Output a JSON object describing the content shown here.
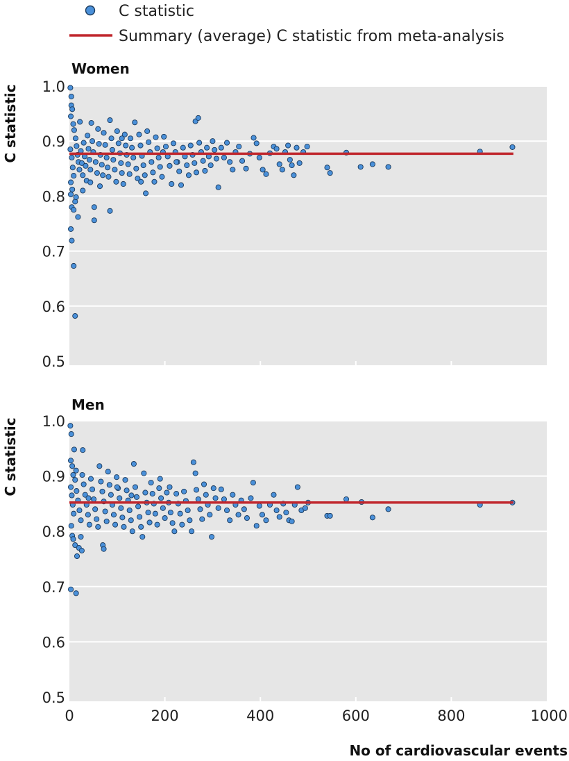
{
  "legend": {
    "point_label": "C statistic",
    "line_label": "Summary (average) C statistic from meta-analysis"
  },
  "colors": {
    "point_fill": "#4a90d9",
    "point_stroke": "#1b3a5c",
    "summary_line": "#c0272d",
    "panel_background": "#e6e6e6",
    "grid": "#ffffff"
  },
  "chart_data": [
    {
      "type": "scatter",
      "title": "Women",
      "xlabel": "No of cardiovascular events",
      "ylabel": "C statistic",
      "xlim": [
        0,
        1000
      ],
      "ylim": [
        0.5,
        1.0
      ],
      "x_ticks": [
        "0",
        "200",
        "400",
        "600",
        "800",
        "1000"
      ],
      "y_ticks": [
        "0.5",
        "0.6",
        "0.7",
        "0.8",
        "0.9",
        "1.0"
      ],
      "grid": "horizontal",
      "legend_position": "top",
      "summary_line": {
        "value": 0.877,
        "x_range": [
          0,
          930
        ]
      },
      "points": [
        [
          2,
          0.997
        ],
        [
          4,
          0.981
        ],
        [
          4,
          0.965
        ],
        [
          6,
          0.958
        ],
        [
          3,
          0.945
        ],
        [
          8,
          0.931
        ],
        [
          2,
          0.885
        ],
        [
          5,
          0.87
        ],
        [
          7,
          0.852
        ],
        [
          9,
          0.837
        ],
        [
          3,
          0.825
        ],
        [
          6,
          0.812
        ],
        [
          3,
          0.803
        ],
        [
          5,
          0.78
        ],
        [
          9,
          0.775
        ],
        [
          12,
          0.79
        ],
        [
          14,
          0.798
        ],
        [
          3,
          0.74
        ],
        [
          5,
          0.719
        ],
        [
          9,
          0.673
        ],
        [
          12,
          0.582
        ],
        [
          18,
          0.762
        ],
        [
          52,
          0.756
        ],
        [
          52,
          0.78
        ],
        [
          85,
          0.773
        ],
        [
          10,
          0.92
        ],
        [
          13,
          0.905
        ],
        [
          15,
          0.891
        ],
        [
          17,
          0.875
        ],
        [
          19,
          0.862
        ],
        [
          21,
          0.848
        ],
        [
          24,
          0.882
        ],
        [
          26,
          0.86
        ],
        [
          28,
          0.838
        ],
        [
          30,
          0.897
        ],
        [
          32,
          0.872
        ],
        [
          34,
          0.855
        ],
        [
          36,
          0.828
        ],
        [
          38,
          0.91
        ],
        [
          40,
          0.886
        ],
        [
          42,
          0.866
        ],
        [
          44,
          0.848
        ],
        [
          46,
          0.933
        ],
        [
          48,
          0.9
        ],
        [
          50,
          0.88
        ],
        [
          55,
          0.862
        ],
        [
          58,
          0.842
        ],
        [
          60,
          0.922
        ],
        [
          62,
          0.895
        ],
        [
          65,
          0.875
        ],
        [
          68,
          0.857
        ],
        [
          70,
          0.838
        ],
        [
          72,
          0.915
        ],
        [
          75,
          0.893
        ],
        [
          78,
          0.87
        ],
        [
          80,
          0.852
        ],
        [
          82,
          0.835
        ],
        [
          85,
          0.938
        ],
        [
          88,
          0.905
        ],
        [
          90,
          0.884
        ],
        [
          92,
          0.866
        ],
        [
          95,
          0.848
        ],
        [
          98,
          0.826
        ],
        [
          100,
          0.918
        ],
        [
          103,
          0.896
        ],
        [
          106,
          0.878
        ],
        [
          108,
          0.86
        ],
        [
          110,
          0.842
        ],
        [
          113,
          0.822
        ],
        [
          116,
          0.912
        ],
        [
          118,
          0.892
        ],
        [
          120,
          0.875
        ],
        [
          123,
          0.858
        ],
        [
          126,
          0.84
        ],
        [
          128,
          0.905
        ],
        [
          131,
          0.888
        ],
        [
          134,
          0.87
        ],
        [
          137,
          0.934
        ],
        [
          140,
          0.85
        ],
        [
          143,
          0.832
        ],
        [
          146,
          0.912
        ],
        [
          149,
          0.892
        ],
        [
          152,
          0.873
        ],
        [
          155,
          0.856
        ],
        [
          158,
          0.838
        ],
        [
          160,
          0.805
        ],
        [
          163,
          0.918
        ],
        [
          166,
          0.898
        ],
        [
          169,
          0.88
        ],
        [
          172,
          0.862
        ],
        [
          175,
          0.843
        ],
        [
          178,
          0.826
        ],
        [
          181,
          0.907
        ],
        [
          184,
          0.887
        ],
        [
          187,
          0.87
        ],
        [
          190,
          0.853
        ],
        [
          194,
          0.835
        ],
        [
          198,
          0.908
        ],
        [
          202,
          0.89
        ],
        [
          206,
          0.872
        ],
        [
          210,
          0.855
        ],
        [
          214,
          0.822
        ],
        [
          218,
          0.896
        ],
        [
          222,
          0.88
        ],
        [
          226,
          0.862
        ],
        [
          230,
          0.845
        ],
        [
          234,
          0.82
        ],
        [
          238,
          0.888
        ],
        [
          242,
          0.872
        ],
        [
          246,
          0.856
        ],
        [
          250,
          0.838
        ],
        [
          254,
          0.892
        ],
        [
          258,
          0.875
        ],
        [
          262,
          0.86
        ],
        [
          264,
          0.936
        ],
        [
          266,
          0.843
        ],
        [
          270,
          0.942
        ],
        [
          272,
          0.897
        ],
        [
          276,
          0.88
        ],
        [
          280,
          0.864
        ],
        [
          284,
          0.846
        ],
        [
          288,
          0.888
        ],
        [
          292,
          0.872
        ],
        [
          296,
          0.856
        ],
        [
          300,
          0.9
        ],
        [
          304,
          0.884
        ],
        [
          308,
          0.868
        ],
        [
          312,
          0.816
        ],
        [
          318,
          0.888
        ],
        [
          324,
          0.87
        ],
        [
          330,
          0.897
        ],
        [
          336,
          0.862
        ],
        [
          342,
          0.848
        ],
        [
          348,
          0.88
        ],
        [
          355,
          0.89
        ],
        [
          362,
          0.864
        ],
        [
          370,
          0.85
        ],
        [
          378,
          0.877
        ],
        [
          386,
          0.906
        ],
        [
          392,
          0.896
        ],
        [
          398,
          0.87
        ],
        [
          405,
          0.848
        ],
        [
          412,
          0.84
        ],
        [
          420,
          0.878
        ],
        [
          428,
          0.89
        ],
        [
          434,
          0.886
        ],
        [
          440,
          0.858
        ],
        [
          446,
          0.848
        ],
        [
          452,
          0.88
        ],
        [
          458,
          0.892
        ],
        [
          462,
          0.866
        ],
        [
          466,
          0.856
        ],
        [
          470,
          0.838
        ],
        [
          476,
          0.888
        ],
        [
          482,
          0.86
        ],
        [
          490,
          0.88
        ],
        [
          498,
          0.89
        ],
        [
          540,
          0.852
        ],
        [
          546,
          0.842
        ],
        [
          580,
          0.879
        ],
        [
          610,
          0.853
        ],
        [
          635,
          0.858
        ],
        [
          668,
          0.853
        ],
        [
          860,
          0.881
        ],
        [
          928,
          0.889
        ],
        [
          22,
          0.935
        ],
        [
          28,
          0.81
        ],
        [
          44,
          0.825
        ],
        [
          64,
          0.818
        ],
        [
          110,
          0.905
        ],
        [
          150,
          0.826
        ],
        [
          196,
          0.88
        ],
        [
          224,
          0.862
        ]
      ]
    },
    {
      "type": "scatter",
      "title": "Men",
      "xlabel": "No of cardiovascular events",
      "ylabel": "C statistic",
      "xlim": [
        0,
        1000
      ],
      "ylim": [
        0.5,
        1.0
      ],
      "x_ticks": [
        "0",
        "200",
        "400",
        "600",
        "800",
        "1000"
      ],
      "y_ticks": [
        "0.5",
        "0.6",
        "0.7",
        "0.8",
        "0.9",
        "1.0"
      ],
      "grid": "horizontal",
      "legend_position": "top",
      "summary_line": {
        "value": 0.852,
        "x_range": [
          0,
          930
        ]
      },
      "points": [
        [
          2,
          0.991
        ],
        [
          4,
          0.976
        ],
        [
          3,
          0.928
        ],
        [
          6,
          0.918
        ],
        [
          8,
          0.902
        ],
        [
          10,
          0.948
        ],
        [
          3,
          0.88
        ],
        [
          5,
          0.865
        ],
        [
          7,
          0.848
        ],
        [
          9,
          0.832
        ],
        [
          4,
          0.81
        ],
        [
          6,
          0.792
        ],
        [
          8,
          0.786
        ],
        [
          12,
          0.775
        ],
        [
          3,
          0.695
        ],
        [
          14,
          0.688
        ],
        [
          16,
          0.755
        ],
        [
          20,
          0.77
        ],
        [
          26,
          0.765
        ],
        [
          28,
          0.947
        ],
        [
          12,
          0.893
        ],
        [
          15,
          0.873
        ],
        [
          18,
          0.856
        ],
        [
          21,
          0.838
        ],
        [
          24,
          0.82
        ],
        [
          27,
          0.902
        ],
        [
          30,
          0.885
        ],
        [
          33,
          0.866
        ],
        [
          36,
          0.848
        ],
        [
          39,
          0.83
        ],
        [
          42,
          0.812
        ],
        [
          45,
          0.895
        ],
        [
          48,
          0.876
        ],
        [
          51,
          0.858
        ],
        [
          54,
          0.84
        ],
        [
          57,
          0.822
        ],
        [
          60,
          0.808
        ],
        [
          63,
          0.918
        ],
        [
          66,
          0.89
        ],
        [
          69,
          0.872
        ],
        [
          72,
          0.854
        ],
        [
          75,
          0.836
        ],
        [
          78,
          0.818
        ],
        [
          81,
          0.908
        ],
        [
          84,
          0.884
        ],
        [
          87,
          0.866
        ],
        [
          90,
          0.848
        ],
        [
          93,
          0.83
        ],
        [
          96,
          0.812
        ],
        [
          99,
          0.898
        ],
        [
          102,
          0.878
        ],
        [
          105,
          0.86
        ],
        [
          108,
          0.842
        ],
        [
          111,
          0.825
        ],
        [
          114,
          0.808
        ],
        [
          117,
          0.893
        ],
        [
          120,
          0.874
        ],
        [
          123,
          0.856
        ],
        [
          126,
          0.838
        ],
        [
          129,
          0.82
        ],
        [
          132,
          0.8
        ],
        [
          135,
          0.922
        ],
        [
          138,
          0.88
        ],
        [
          141,
          0.862
        ],
        [
          144,
          0.845
        ],
        [
          147,
          0.826
        ],
        [
          150,
          0.808
        ],
        [
          153,
          0.79
        ],
        [
          156,
          0.905
        ],
        [
          159,
          0.87
        ],
        [
          162,
          0.852
        ],
        [
          165,
          0.834
        ],
        [
          168,
          0.816
        ],
        [
          171,
          0.888
        ],
        [
          174,
          0.868
        ],
        [
          177,
          0.85
        ],
        [
          180,
          0.832
        ],
        [
          184,
          0.812
        ],
        [
          188,
          0.878
        ],
        [
          192,
          0.86
        ],
        [
          196,
          0.842
        ],
        [
          200,
          0.824
        ],
        [
          204,
          0.87
        ],
        [
          208,
          0.852
        ],
        [
          212,
          0.834
        ],
        [
          216,
          0.815
        ],
        [
          220,
          0.8
        ],
        [
          224,
          0.868
        ],
        [
          228,
          0.85
        ],
        [
          232,
          0.832
        ],
        [
          236,
          0.812
        ],
        [
          240,
          0.872
        ],
        [
          244,
          0.855
        ],
        [
          248,
          0.838
        ],
        [
          252,
          0.82
        ],
        [
          256,
          0.8
        ],
        [
          260,
          0.925
        ],
        [
          264,
          0.905
        ],
        [
          266,
          0.875
        ],
        [
          270,
          0.858
        ],
        [
          274,
          0.84
        ],
        [
          278,
          0.822
        ],
        [
          282,
          0.885
        ],
        [
          286,
          0.866
        ],
        [
          290,
          0.848
        ],
        [
          294,
          0.83
        ],
        [
          298,
          0.79
        ],
        [
          302,
          0.878
        ],
        [
          306,
          0.86
        ],
        [
          312,
          0.842
        ],
        [
          318,
          0.876
        ],
        [
          324,
          0.858
        ],
        [
          330,
          0.838
        ],
        [
          336,
          0.82
        ],
        [
          342,
          0.866
        ],
        [
          348,
          0.848
        ],
        [
          354,
          0.83
        ],
        [
          360,
          0.856
        ],
        [
          366,
          0.84
        ],
        [
          372,
          0.824
        ],
        [
          380,
          0.86
        ],
        [
          385,
          0.888
        ],
        [
          392,
          0.81
        ],
        [
          398,
          0.846
        ],
        [
          404,
          0.83
        ],
        [
          412,
          0.82
        ],
        [
          420,
          0.848
        ],
        [
          428,
          0.866
        ],
        [
          434,
          0.838
        ],
        [
          440,
          0.826
        ],
        [
          448,
          0.85
        ],
        [
          454,
          0.834
        ],
        [
          460,
          0.82
        ],
        [
          466,
          0.818
        ],
        [
          472,
          0.848
        ],
        [
          478,
          0.88
        ],
        [
          486,
          0.838
        ],
        [
          494,
          0.842
        ],
        [
          500,
          0.852
        ],
        [
          540,
          0.828
        ],
        [
          546,
          0.828
        ],
        [
          580,
          0.858
        ],
        [
          612,
          0.853
        ],
        [
          635,
          0.825
        ],
        [
          668,
          0.84
        ],
        [
          860,
          0.848
        ],
        [
          928,
          0.852
        ],
        [
          14,
          0.91
        ],
        [
          24,
          0.79
        ],
        [
          40,
          0.86
        ],
        [
          70,
          0.775
        ],
        [
          72,
          0.768
        ],
        [
          100,
          0.88
        ],
        [
          130,
          0.865
        ],
        [
          190,
          0.895
        ],
        [
          210,
          0.88
        ]
      ]
    }
  ]
}
